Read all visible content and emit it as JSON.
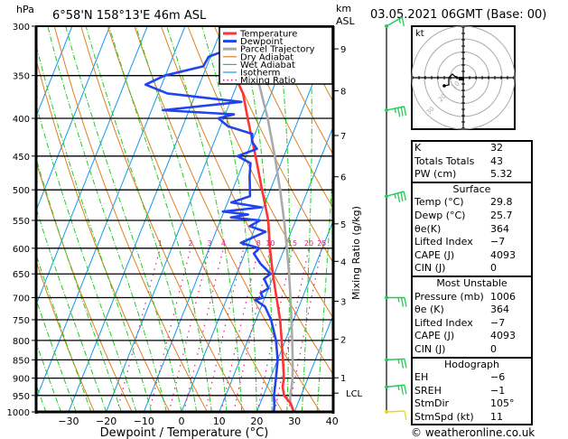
{
  "header": {
    "pressure_unit": "hPa",
    "location": "6°58'N  158°13'E  46m  ASL",
    "km_label_1": "km",
    "km_label_2": "ASL",
    "datetime": "03.05.2021  06GMT  (Base: 00)",
    "copyright": "© weatheronline.co.uk"
  },
  "colors": {
    "temperature": "#ff3333",
    "dewpoint": "#2244ee",
    "parcel": "#aaaaaa",
    "dry_adiabat": "#e08020",
    "wet_adiabat": "#22cc22",
    "isotherm": "#1199ee",
    "mixing_ratio": "#e0208a",
    "wind_barb": "#22cc55",
    "wind_barb_surface": "#dddd22"
  },
  "chart_data": {
    "type": "line",
    "title": "Skew-T log-P sounding",
    "xlabel": "Dewpoint / Temperature (°C)",
    "ylabel": "hPa",
    "right_label": "Mixing Ratio (g/kg)",
    "xlim": [
      -40,
      40
    ],
    "ylim": [
      1000,
      300
    ],
    "x_ticks": [
      -30,
      -20,
      -10,
      0,
      10,
      20,
      30,
      40
    ],
    "pressure_levels": [
      300,
      350,
      400,
      450,
      500,
      550,
      600,
      650,
      700,
      750,
      800,
      850,
      900,
      950,
      1000
    ],
    "km_ticks": [
      {
        "label": "9",
        "p": 322
      },
      {
        "label": "8",
        "p": 367
      },
      {
        "label": "7",
        "p": 422
      },
      {
        "label": "6",
        "p": 480
      },
      {
        "label": "5",
        "p": 556
      },
      {
        "label": "4",
        "p": 625
      },
      {
        "label": "3",
        "p": 708
      },
      {
        "label": "2",
        "p": 797
      },
      {
        "label": "1",
        "p": 899
      },
      {
        "label": "LCL",
        "p": 943
      }
    ],
    "mixing_ratio_labels": [
      "1",
      "2",
      "3",
      "4",
      "6",
      "8",
      "10",
      "15",
      "20",
      "25"
    ],
    "mixing_ratio_values": [
      1,
      2,
      3,
      4,
      6,
      8,
      10,
      15,
      20,
      25
    ],
    "legend": [
      "Temperature",
      "Dewpoint",
      "Parcel Trajectory",
      "Dry Adiabat",
      "Wet Adiabat",
      "Isotherm",
      "Mixing Ratio"
    ],
    "legend_position": "top-right",
    "series": [
      {
        "name": "Temperature",
        "points": [
          [
            1000,
            29.8
          ],
          [
            975,
            28.2
          ],
          [
            950,
            25.5
          ],
          [
            925,
            24.2
          ],
          [
            900,
            23.6
          ],
          [
            850,
            21.4
          ],
          [
            800,
            19.0
          ],
          [
            750,
            16.4
          ],
          [
            700,
            13.1
          ],
          [
            650,
            9.6
          ],
          [
            600,
            6.1
          ],
          [
            550,
            2.7
          ],
          [
            500,
            -2.2
          ],
          [
            450,
            -7.5
          ],
          [
            400,
            -13.6
          ],
          [
            370,
            -17.5
          ],
          [
            350,
            -21.6
          ],
          [
            330,
            -25.0
          ],
          [
            310,
            -28.9
          ],
          [
            300,
            -30.5
          ]
        ]
      },
      {
        "name": "Dewpoint",
        "points": [
          [
            1000,
            24.5
          ],
          [
            980,
            24.0
          ],
          [
            960,
            23.2
          ],
          [
            950,
            22.8
          ],
          [
            900,
            21.5
          ],
          [
            850,
            20.0
          ],
          [
            800,
            17.5
          ],
          [
            750,
            14.0
          ],
          [
            720,
            11.0
          ],
          [
            705,
            7.7
          ],
          [
            700,
            9.5
          ],
          [
            690,
            8.4
          ],
          [
            680,
            10.0
          ],
          [
            660,
            7.8
          ],
          [
            650,
            9.0
          ],
          [
            630,
            5.3
          ],
          [
            610,
            2.4
          ],
          [
            600,
            3.3
          ],
          [
            590,
            -2.2
          ],
          [
            570,
            3.2
          ],
          [
            560,
            -1.6
          ],
          [
            550,
            0.5
          ],
          [
            545,
            -7.5
          ],
          [
            540,
            -3.3
          ],
          [
            535,
            -10.3
          ],
          [
            528,
            -0.5
          ],
          [
            520,
            -9.0
          ],
          [
            510,
            -4.7
          ],
          [
            500,
            -5.4
          ],
          [
            480,
            -6.9
          ],
          [
            460,
            -8.1
          ],
          [
            450,
            -12.3
          ],
          [
            440,
            -7.9
          ],
          [
            430,
            -10.0
          ],
          [
            420,
            -10.7
          ],
          [
            410,
            -18.0
          ],
          [
            400,
            -21.4
          ],
          [
            395,
            -17.7
          ],
          [
            390,
            -37.0
          ],
          [
            380,
            -17.0
          ],
          [
            370,
            -37.6
          ],
          [
            360,
            -44.3
          ],
          [
            350,
            -40.2
          ],
          [
            340,
            -30.9
          ],
          [
            330,
            -30.5
          ],
          [
            320,
            -24.6
          ],
          [
            310,
            -27.3
          ],
          [
            300,
            -31.1
          ]
        ]
      },
      {
        "name": "Parcel Trajectory",
        "points": [
          [
            1000,
            29.8
          ],
          [
            975,
            28.0
          ],
          [
            950,
            27.1
          ],
          [
            925,
            26.6
          ],
          [
            900,
            25.9
          ],
          [
            850,
            24.0
          ],
          [
            800,
            21.8
          ],
          [
            750,
            19.4
          ],
          [
            700,
            16.8
          ],
          [
            650,
            13.9
          ],
          [
            600,
            10.6
          ],
          [
            550,
            6.9
          ],
          [
            500,
            2.6
          ],
          [
            450,
            -2.4
          ],
          [
            400,
            -8.3
          ],
          [
            370,
            -12.6
          ],
          [
            350,
            -15.7
          ]
        ]
      }
    ]
  },
  "wind_barbs": [
    {
      "p": 300,
      "dir_deg": 220,
      "speed_kt": 5
    },
    {
      "p": 390,
      "dir_deg": 250,
      "speed_kt": 25
    },
    {
      "p": 510,
      "dir_deg": 245,
      "speed_kt": 25
    },
    {
      "p": 700,
      "dir_deg": 270,
      "speed_kt": 15
    },
    {
      "p": 850,
      "dir_deg": 265,
      "speed_kt": 15
    },
    {
      "p": 925,
      "dir_deg": 260,
      "speed_kt": 15
    },
    {
      "p": 1000,
      "dir_deg": 265,
      "speed_kt": 10
    }
  ],
  "hodograph": {
    "unit_label": "kt",
    "ring_labels": [
      "10",
      "20",
      "30",
      "40"
    ]
  },
  "indices": {
    "top": [
      {
        "label": "K",
        "value": "32"
      },
      {
        "label": "Totals Totals",
        "value": "43"
      },
      {
        "label": "PW (cm)",
        "value": "5.32"
      }
    ],
    "surface": {
      "title": "Surface",
      "rows": [
        {
          "label": "Temp (°C)",
          "value": "29.8"
        },
        {
          "label": "Dewp (°C)",
          "value": "25.7"
        },
        {
          "label": "θe(K)",
          "value": "364"
        },
        {
          "label": "Lifted Index",
          "value": "−7"
        },
        {
          "label": "CAPE (J)",
          "value": "4093"
        },
        {
          "label": "CIN (J)",
          "value": "0"
        }
      ]
    },
    "most_unstable": {
      "title": "Most Unstable",
      "rows": [
        {
          "label": "Pressure (mb)",
          "value": "1006"
        },
        {
          "label": "θe (K)",
          "value": "364"
        },
        {
          "label": "Lifted Index",
          "value": "−7"
        },
        {
          "label": "CAPE (J)",
          "value": "4093"
        },
        {
          "label": "CIN (J)",
          "value": "0"
        }
      ]
    },
    "hodograph": {
      "title": "Hodograph",
      "rows": [
        {
          "label": "EH",
          "value": "−6"
        },
        {
          "label": "SREH",
          "value": "−1"
        },
        {
          "label": "StmDir",
          "value": "105°"
        },
        {
          "label": "StmSpd (kt)",
          "value": "11"
        }
      ]
    }
  }
}
